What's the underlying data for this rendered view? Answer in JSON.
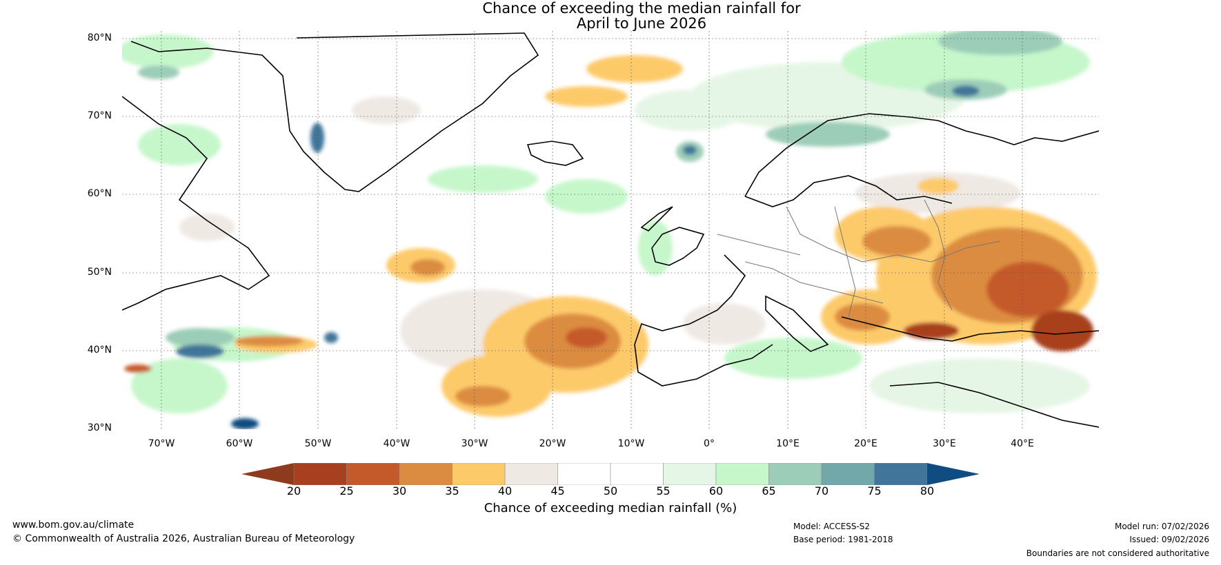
{
  "title": {
    "line1": "Chance of exceeding the median rainfall for",
    "line2": "April to June 2026"
  },
  "map": {
    "region": "North Atlantic and Europe",
    "lat_labels": [
      "80°N",
      "70°N",
      "60°N",
      "50°N",
      "40°N",
      "30°N"
    ],
    "lon_labels": [
      "70°W",
      "60°W",
      "50°W",
      "40°W",
      "30°W",
      "20°W",
      "10°W",
      "0°",
      "10°E",
      "20°E",
      "30°E",
      "40°E"
    ],
    "dry_color": "#8b3a1e",
    "wet_color": "#0f4c81"
  },
  "colorbar": {
    "ticks": [
      "20",
      "25",
      "30",
      "35",
      "40",
      "45",
      "50",
      "55",
      "60",
      "65",
      "70",
      "75",
      "80"
    ],
    "colors": [
      "#a8401f",
      "#c45a2a",
      "#dc8c40",
      "#fdca6a",
      "#efe9e4",
      "#ffffff",
      "#ffffff",
      "#e6f6e6",
      "#c6f7cb",
      "#9ccdb8",
      "#72a8aa",
      "#41769a"
    ],
    "low_color": "#8e3a1c",
    "high_color": "#0f4c81",
    "label": "Chance of exceeding median rainfall (%)"
  },
  "footer": {
    "url": "www.bom.gov.au/climate",
    "copyright": "© Commonwealth of Australia 2026, Australian Bureau of Meteorology",
    "model": "Model: ACCESS-S2",
    "base_period": "Base period: 1981-2018",
    "model_run": "Model run: 07/02/2026",
    "issued": "Issued: 09/02/2026",
    "disclaimer": "Boundaries are not considered authoritative"
  }
}
